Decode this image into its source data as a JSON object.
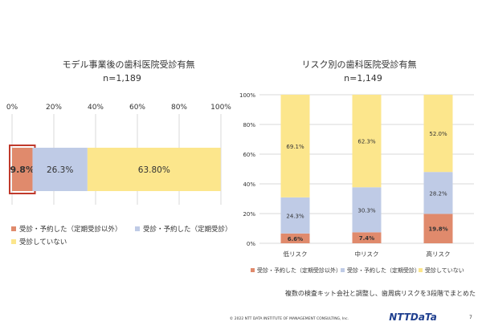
{
  "colors": {
    "outside_checkup": "#E08A6C",
    "checkup": "#BFCBE6",
    "none": "#FCE68C",
    "highlight_border": "#C0392B",
    "grid": "#D9D9D9",
    "text": "#333333",
    "brand": "#1F3F8F"
  },
  "chart_data": [
    {
      "type": "bar",
      "orientation": "horizontal-stacked",
      "title": "モデル事業後の歯科医院受診有無",
      "subtitle": "n=1,189",
      "xlim": [
        0,
        100
      ],
      "x_ticks": [
        "0%",
        "20%",
        "40%",
        "60%",
        "80%",
        "100%"
      ],
      "series": [
        {
          "name": "受診・予約した（定期受診以外）",
          "values": [
            9.8
          ],
          "label": "9.8%"
        },
        {
          "name": "受診・予約した（定期受診）",
          "values": [
            26.3
          ],
          "label": "26.3%"
        },
        {
          "name": "受診していない",
          "values": [
            63.8
          ],
          "label": "63.80%"
        }
      ],
      "legend": "bottom"
    },
    {
      "type": "bar",
      "orientation": "vertical-stacked",
      "title": "リスク別の歯科医院受診有無",
      "subtitle": "n=1,149",
      "categories": [
        "低リスク",
        "中リスク",
        "高リスク"
      ],
      "ylim": [
        0,
        100
      ],
      "y_ticks": [
        "0%",
        "20%",
        "40%",
        "60%",
        "80%",
        "100%"
      ],
      "series": [
        {
          "name": "受診・予約した（定期受診以外）",
          "values": [
            6.6,
            7.4,
            19.8
          ],
          "labels": [
            "6.6%",
            "7.4%",
            "19.8%"
          ]
        },
        {
          "name": "受診・予約した（定期受診）",
          "values": [
            24.3,
            30.3,
            28.2
          ],
          "labels": [
            "24.3%",
            "30.3%",
            "28.2%"
          ]
        },
        {
          "name": "受診していない",
          "values": [
            69.1,
            62.3,
            52.0
          ],
          "labels": [
            "69.1%",
            "62.3%",
            "52.0%"
          ]
        }
      ],
      "legend": "bottom"
    }
  ],
  "note": "複数の検査キット会社と調整し、歯周病リスクを3段階でまとめた",
  "footer": {
    "copyright": "© 2022 NTT DATA INSTITUTE OF MANAGEMENT CONSULTING, Inc.",
    "brand": "NTTDaTa",
    "page": "7"
  }
}
